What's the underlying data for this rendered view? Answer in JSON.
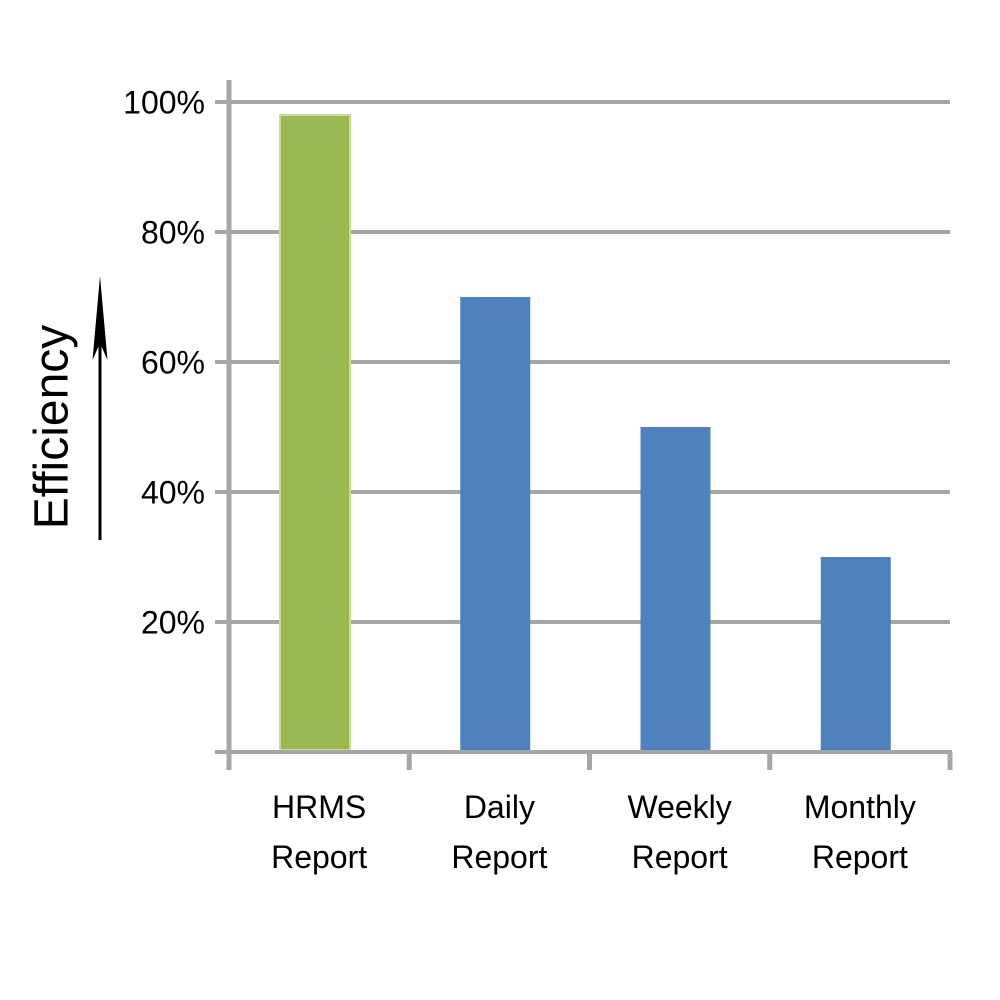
{
  "chart_data": {
    "type": "bar",
    "title": "",
    "xlabel": "",
    "ylabel": "Efficiency",
    "categories": [
      "HRMS Report",
      "Daily Report",
      "Weekly Report",
      "Monthly Report"
    ],
    "category_lines": [
      [
        "HRMS",
        "Report"
      ],
      [
        "Daily",
        "Report"
      ],
      [
        "Weekly",
        "Report"
      ],
      [
        "Monthly",
        "Report"
      ]
    ],
    "values": [
      98,
      70,
      50,
      30
    ],
    "unit": "%",
    "ylim": [
      0,
      100
    ],
    "yticks": [
      20,
      40,
      60,
      80,
      100
    ],
    "ytick_labels": [
      "20%",
      "40%",
      "60%",
      "80%",
      "100%"
    ],
    "grid": "horizontal-only",
    "legend": "none",
    "bar_colors": [
      "#9ab953",
      "#4f81bd",
      "#4f81bd",
      "#4f81bd"
    ],
    "colors": {
      "highlight_bar": "#9ab953",
      "highlight_bar_border": "#c9da9b",
      "default_bar": "#4f81bd",
      "axis": "#a6a6a6",
      "text": "#000000",
      "arrow": "#000000",
      "background": "#ffffff"
    }
  }
}
